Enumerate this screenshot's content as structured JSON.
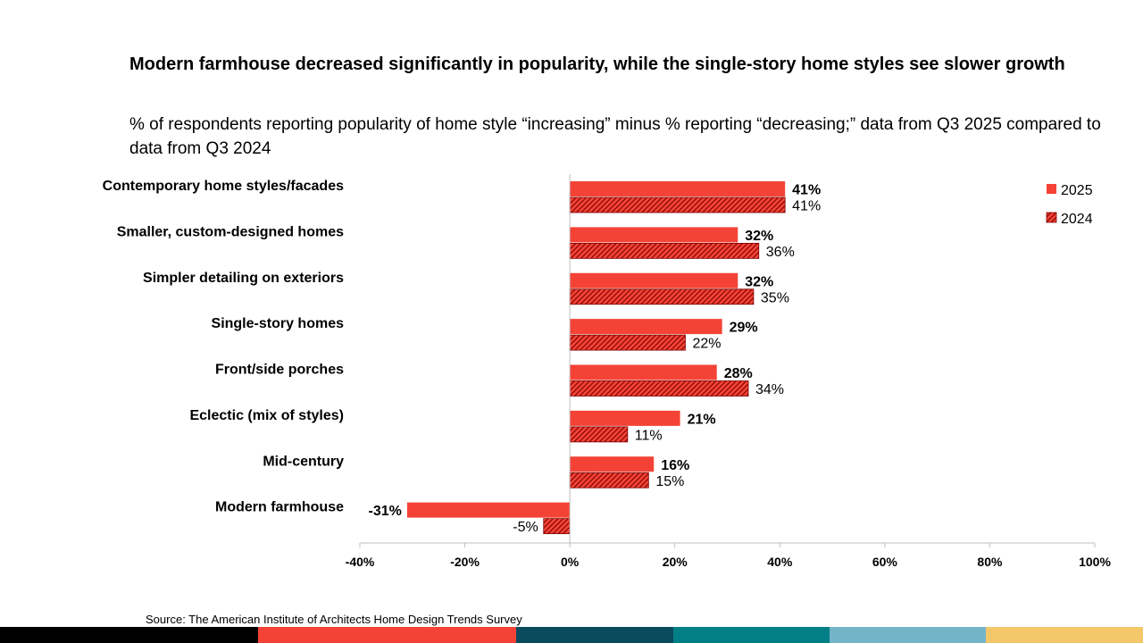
{
  "title": "Modern farmhouse decreased significantly in popularity, while the single-story home styles see slower growth",
  "subtitle": "% of respondents reporting popularity of home style “increasing” minus % reporting “decreasing;” data from Q3 2025 compared to data from Q3 2024",
  "source": "Source: The American Institute of Architects Home Design Trends Survey",
  "colors": {
    "bar": "#f44336",
    "hatch": "#8b0000",
    "axis": "#bfbfbf"
  },
  "footer_colors": [
    "#000000",
    "#f44336",
    "#0b4b5e",
    "#017f86",
    "#74b4c9",
    "#f4c86a"
  ],
  "chart_data": {
    "type": "bar",
    "orientation": "horizontal",
    "categories": [
      "Contemporary home styles/facades",
      "Smaller, custom-designed homes",
      "Simpler detailing on  exteriors",
      "Single-story homes",
      "Front/side porches",
      "Eclectic (mix of styles)",
      "Mid-century",
      "Modern farmhouse"
    ],
    "series": [
      {
        "name": "2025",
        "values": [
          41,
          32,
          32,
          29,
          28,
          21,
          16,
          -31
        ],
        "labels": [
          "41%",
          "32%",
          "32%",
          "29%",
          "28%",
          "21%",
          "16%",
          "-31%"
        ],
        "fill": "solid"
      },
      {
        "name": "2024",
        "values": [
          41,
          36,
          35,
          22,
          34,
          11,
          15,
          -5
        ],
        "labels": [
          "41%",
          "36%",
          "35%",
          "22%",
          "34%",
          "11%",
          "15%",
          "-5%"
        ],
        "fill": "hatched"
      }
    ],
    "xlim": [
      -40,
      100
    ],
    "xticks": [
      -40,
      -20,
      0,
      20,
      40,
      60,
      80,
      100
    ],
    "xtick_labels": [
      "-40%",
      "-20%",
      "0%",
      "20%",
      "40%",
      "60%",
      "80%",
      "100%"
    ],
    "legend_position": "top-right",
    "grid": false
  }
}
